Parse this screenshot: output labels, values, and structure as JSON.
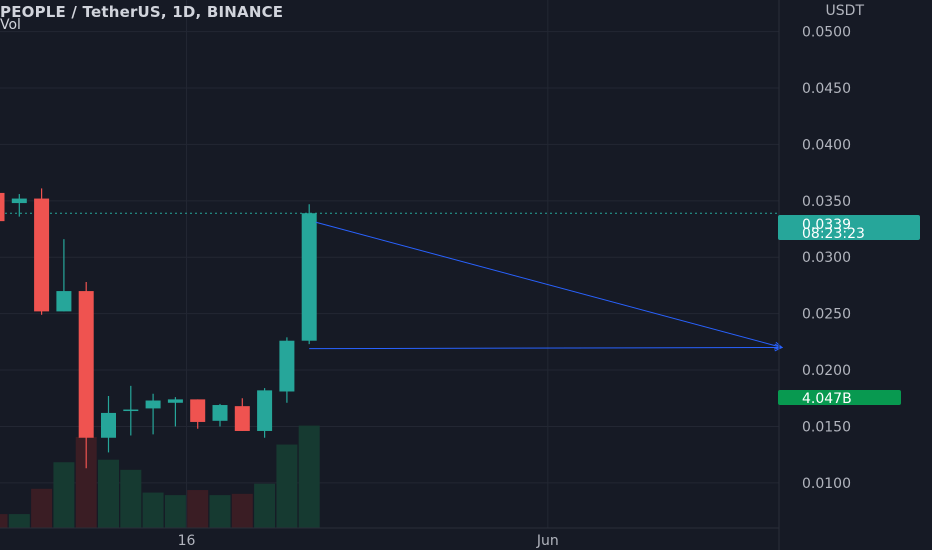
{
  "header": {
    "title": "PEOPLE / TetherUS, 1D, BINANCE",
    "vol_label": "Vol"
  },
  "price_axis": {
    "unit": "USDT"
  },
  "badges": {
    "last_price": "0.0339",
    "countdown": "08:23:23",
    "volume": "4.047B"
  },
  "colors": {
    "up": "#26a69a",
    "down": "#ef5350",
    "volume_up": "#163a31",
    "volume_down": "#3a1d24",
    "drawing": "#2962ff",
    "volume_badge": "#089950"
  },
  "chart_data": {
    "type": "candlestick",
    "symbol": "PEOPLE / TetherUS",
    "interval": "1D",
    "exchange": "BINANCE",
    "y_unit": "USDT",
    "ylim": [
      0.006,
      0.0528
    ],
    "y_ticks": [
      0.05,
      0.045,
      0.04,
      0.035,
      0.03,
      0.025,
      0.02,
      0.015,
      0.01
    ],
    "y_tick_labels": [
      "0.0500",
      "0.0450",
      "0.0400",
      "0.0350",
      "0.0300",
      "0.0250",
      "0.0200",
      "0.0150",
      "0.0100"
    ],
    "x_tick_labels": [
      {
        "label": "16",
        "index": 8.5
      },
      {
        "label": "Jun",
        "index": 24.7
      }
    ],
    "candles": [
      {
        "o": 0.0357,
        "h": 0.0372,
        "l": 0.0333,
        "c": 0.0332,
        "vol": 0.55
      },
      {
        "o": 0.0348,
        "h": 0.0356,
        "l": 0.0336,
        "c": 0.0352,
        "vol": 0.55
      },
      {
        "o": 0.0352,
        "h": 0.0361,
        "l": 0.0249,
        "c": 0.0252,
        "vol": 1.55
      },
      {
        "o": 0.0252,
        "h": 0.0316,
        "l": 0.0252,
        "c": 0.027,
        "vol": 2.6
      },
      {
        "o": 0.027,
        "h": 0.0278,
        "l": 0.0113,
        "c": 0.014,
        "vol": 3.6
      },
      {
        "o": 0.014,
        "h": 0.0177,
        "l": 0.0127,
        "c": 0.0162,
        "vol": 2.7
      },
      {
        "o": 0.0164,
        "h": 0.0186,
        "l": 0.0142,
        "c": 0.0165,
        "vol": 2.3
      },
      {
        "o": 0.0166,
        "h": 0.0179,
        "l": 0.0143,
        "c": 0.0173,
        "vol": 1.4
      },
      {
        "o": 0.0171,
        "h": 0.0176,
        "l": 0.015,
        "c": 0.0174,
        "vol": 1.3
      },
      {
        "o": 0.0174,
        "h": 0.0174,
        "l": 0.0148,
        "c": 0.0154,
        "vol": 1.5
      },
      {
        "o": 0.0155,
        "h": 0.017,
        "l": 0.015,
        "c": 0.0169,
        "vol": 1.3
      },
      {
        "o": 0.0168,
        "h": 0.0175,
        "l": 0.0146,
        "c": 0.0146,
        "vol": 1.35
      },
      {
        "o": 0.0146,
        "h": 0.0184,
        "l": 0.014,
        "c": 0.0182,
        "vol": 1.75
      },
      {
        "o": 0.0181,
        "h": 0.0229,
        "l": 0.0171,
        "c": 0.0226,
        "vol": 3.3
      },
      {
        "o": 0.0226,
        "h": 0.0347,
        "l": 0.0223,
        "c": 0.0339,
        "vol": 4.047
      }
    ],
    "volume_unit": "B",
    "volume_max_display": 10.2,
    "last_price": 0.0339,
    "drawing": {
      "type": "arrows",
      "start": {
        "index": 14.3,
        "price": 0.0331
      },
      "end": {
        "index": 35.2,
        "price": 0.022
      },
      "corner": {
        "index": 14.0,
        "price": 0.0219
      }
    }
  }
}
